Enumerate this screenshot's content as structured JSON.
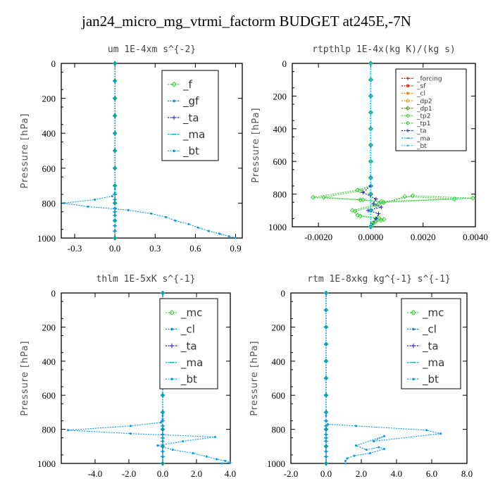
{
  "figure_title": "jan24_micro_mg_vtrmi_factorm  BUDGET at245E,-7N",
  "chart_data": [
    {
      "type": "line",
      "title": "um   1E-4xm  s^{-2}",
      "ylabel": "Pressure [hPa]",
      "ylim": [
        1000,
        0
      ],
      "xlim": [
        -0.4,
        0.95
      ],
      "xticks": [
        -0.3,
        0.0,
        0.3,
        0.6,
        0.9
      ],
      "xtick_labels": [
        "-0.3",
        "0.0",
        "0.3",
        "0.6",
        "0.9"
      ],
      "yticks": [
        0,
        200,
        400,
        600,
        800,
        1000
      ],
      "legend_font": 15,
      "series": [
        {
          "name": "_f",
          "color": "#33cc33",
          "marker": "dia",
          "x": [
            0,
            0,
            0,
            0,
            0,
            0,
            0,
            0,
            0,
            0,
            0
          ],
          "y": [
            0,
            100,
            200,
            300,
            400,
            500,
            600,
            700,
            800,
            900,
            1000
          ]
        },
        {
          "name": "_gf",
          "color": "#0088dd",
          "marker": "dot",
          "x": [
            0,
            0,
            0,
            0,
            0,
            0,
            0,
            0,
            0,
            0,
            0,
            0,
            0,
            0,
            0,
            0,
            0,
            0
          ],
          "y": [
            0,
            100,
            200,
            300,
            400,
            500,
            600,
            700,
            750,
            780,
            800,
            830,
            850,
            870,
            900,
            930,
            960,
            1000
          ]
        },
        {
          "name": "_ta",
          "color": "#2222cc",
          "marker": "plus",
          "x": [
            0,
            0,
            0,
            0,
            0,
            0,
            0,
            0,
            0,
            0,
            0,
            0,
            0,
            0,
            0,
            0,
            0,
            0
          ],
          "y": [
            0,
            100,
            200,
            300,
            400,
            500,
            600,
            700,
            750,
            780,
            800,
            830,
            850,
            870,
            900,
            930,
            960,
            1000
          ]
        },
        {
          "name": "_ma",
          "color": "#00aacc",
          "marker": "dash",
          "x": [
            0,
            0,
            0,
            0,
            0,
            0,
            0,
            0,
            0,
            0,
            0,
            0,
            0,
            0,
            0,
            0,
            0,
            0
          ],
          "y": [
            0,
            100,
            200,
            300,
            400,
            500,
            600,
            700,
            750,
            780,
            800,
            830,
            850,
            870,
            900,
            930,
            960,
            1000
          ]
        },
        {
          "name": "_bt",
          "color": "#0099ee",
          "marker": "dot",
          "x": [
            0,
            0,
            0,
            0,
            0,
            0,
            0,
            0,
            0,
            0,
            -0.02,
            -0.15,
            -0.38,
            -0.2,
            0.1,
            0.27,
            0.38,
            0.45,
            0.55,
            0.62,
            0.7,
            0.78,
            0.85,
            0.9
          ],
          "y": [
            0,
            100,
            200,
            300,
            400,
            500,
            600,
            700,
            720,
            740,
            760,
            780,
            800,
            820,
            840,
            860,
            880,
            900,
            920,
            940,
            960,
            975,
            990,
            1000
          ]
        }
      ]
    },
    {
      "type": "line",
      "title": "rtpthlp  1E-4x(kg K)/(kg s)",
      "ylabel": "Pressure [hPa]",
      "ylim": [
        1000,
        0
      ],
      "xlim": [
        -0.003,
        0.004
      ],
      "xticks": [
        -0.002,
        0.0,
        0.002,
        0.004
      ],
      "xtick_labels": [
        "-0.0020",
        "0.0000",
        "0.0020",
        "0.0040"
      ],
      "yticks": [
        0,
        200,
        400,
        600,
        800,
        1000
      ],
      "legend_font": 9,
      "series": [
        {
          "name": "_forcing",
          "color": "#cc0000",
          "marker": "plus",
          "x": [
            0,
            0,
            0,
            0,
            0,
            0,
            0,
            0,
            0,
            0,
            0
          ],
          "y": [
            0,
            100,
            200,
            300,
            400,
            500,
            600,
            700,
            800,
            900,
            1000
          ]
        },
        {
          "name": "_sf",
          "color": "#ee2200",
          "marker": "star",
          "x": [
            0,
            0,
            0,
            0,
            0,
            0,
            0,
            0,
            0,
            0,
            0
          ],
          "y": [
            0,
            100,
            200,
            300,
            400,
            500,
            600,
            700,
            800,
            900,
            1000
          ]
        },
        {
          "name": "_cl",
          "color": "#ee8800",
          "marker": "star",
          "x": [
            0,
            0,
            0,
            0,
            0,
            0,
            0,
            0,
            0,
            0,
            0
          ],
          "y": [
            0,
            100,
            200,
            300,
            400,
            500,
            600,
            700,
            800,
            900,
            1000
          ]
        },
        {
          "name": "_dp2",
          "color": "#ddaa00",
          "marker": "dia",
          "x": [
            0,
            0,
            0,
            0,
            0,
            0,
            0,
            0,
            0,
            0,
            0
          ],
          "y": [
            0,
            100,
            200,
            300,
            400,
            500,
            600,
            700,
            800,
            900,
            1000
          ]
        },
        {
          "name": "_dp1",
          "color": "#448800",
          "marker": "dia",
          "x": [
            0,
            0,
            0,
            0,
            0,
            0,
            0,
            0,
            0,
            0,
            0
          ],
          "y": [
            0,
            100,
            200,
            300,
            400,
            500,
            600,
            700,
            800,
            900,
            1000
          ]
        },
        {
          "name": "_tp2",
          "color": "#33cc33",
          "marker": "dia",
          "x": [
            0,
            0,
            0,
            0,
            0,
            0,
            0,
            0,
            0,
            -0.0005,
            -0.0022,
            -0.0004,
            0.0005,
            0.0039,
            0.0016,
            0.0003,
            -0.0007,
            -0.0005,
            0.0003,
            0.0005,
            0.0002,
            0.0001,
            0
          ],
          "y": [
            0,
            100,
            200,
            300,
            400,
            500,
            600,
            700,
            750,
            775,
            820,
            835,
            850,
            825,
            810,
            860,
            900,
            930,
            945,
            955,
            965,
            980,
            1000
          ]
        },
        {
          "name": "_tp1",
          "color": "#44cc44",
          "marker": "dia",
          "x": [
            0,
            0,
            0,
            0,
            0,
            0,
            0,
            0,
            0,
            -0.0004,
            -0.0018,
            -0.0003,
            0.0004,
            0.0032,
            0.0013,
            0.0002,
            -0.0006,
            -0.0004,
            0.0002,
            0.0004,
            0.0001,
            0
          ],
          "y": [
            0,
            100,
            200,
            300,
            400,
            500,
            600,
            700,
            750,
            780,
            820,
            835,
            845,
            830,
            815,
            870,
            905,
            935,
            950,
            960,
            975,
            1000
          ]
        },
        {
          "name": "_ta",
          "color": "#2222cc",
          "marker": "plus",
          "x": [
            0,
            0,
            0,
            0,
            0,
            0,
            0,
            0,
            0,
            -0.0003,
            0.0002,
            0.0001,
            0.0004,
            -0.0001,
            0.0003,
            0.0002,
            0
          ],
          "y": [
            0,
            100,
            200,
            300,
            400,
            500,
            600,
            700,
            750,
            790,
            830,
            860,
            880,
            900,
            920,
            950,
            1000
          ]
        },
        {
          "name": "_ma",
          "color": "#00aacc",
          "marker": "dash",
          "x": [
            0,
            0,
            0,
            0,
            0,
            0,
            0,
            0,
            0,
            0,
            0
          ],
          "y": [
            0,
            100,
            200,
            300,
            400,
            500,
            600,
            700,
            800,
            900,
            1000
          ]
        },
        {
          "name": "_bt",
          "color": "#00ccee",
          "marker": "dot",
          "x": [
            0,
            0,
            0,
            0,
            0,
            0,
            0,
            0,
            0,
            0,
            0
          ],
          "y": [
            0,
            100,
            200,
            300,
            400,
            500,
            600,
            700,
            800,
            900,
            1000
          ]
        }
      ]
    },
    {
      "type": "line",
      "title": "thlm   1E-5xK  s^{-1}",
      "ylabel": "Pressure [hPa]",
      "ylim": [
        1000,
        0
      ],
      "xlim": [
        -6.0,
        4.0
      ],
      "xticks": [
        -6.0,
        -4.0,
        -2.0,
        0.0,
        2.0,
        4.0
      ],
      "xtick_labels": [
        "",
        "-4.0",
        "-2.0",
        "0.0",
        "2.0",
        "4.0"
      ],
      "yticks": [
        0,
        200,
        400,
        600,
        800,
        1000
      ],
      "legend_font": 15,
      "series": [
        {
          "name": "_mc",
          "color": "#33cc33",
          "marker": "dia",
          "x": [
            0,
            0,
            0,
            0,
            0,
            0,
            0,
            0,
            0,
            0,
            0
          ],
          "y": [
            0,
            100,
            200,
            300,
            400,
            500,
            600,
            700,
            800,
            900,
            1000
          ]
        },
        {
          "name": "_cl",
          "color": "#0088dd",
          "marker": "dot",
          "x": [
            0,
            0,
            0,
            0,
            0,
            0,
            0,
            0,
            0,
            0,
            0,
            0,
            0,
            0,
            0,
            0,
            0,
            0
          ],
          "y": [
            0,
            100,
            200,
            300,
            400,
            500,
            600,
            700,
            750,
            780,
            800,
            830,
            850,
            870,
            900,
            930,
            960,
            1000
          ]
        },
        {
          "name": "_ta",
          "color": "#2222cc",
          "marker": "plus",
          "x": [
            0,
            0,
            0,
            0,
            0,
            0,
            0,
            0,
            0,
            0,
            0,
            0,
            0,
            0,
            0,
            0,
            0,
            0
          ],
          "y": [
            0,
            100,
            200,
            300,
            400,
            500,
            600,
            700,
            750,
            780,
            800,
            830,
            850,
            870,
            900,
            930,
            960,
            1000
          ]
        },
        {
          "name": "_ma",
          "color": "#00aacc",
          "marker": "dash",
          "x": [
            0,
            0,
            0,
            0,
            0,
            0,
            0,
            0,
            0,
            0,
            0,
            0,
            0,
            0,
            0,
            0,
            0,
            0
          ],
          "y": [
            0,
            100,
            200,
            300,
            400,
            500,
            600,
            700,
            750,
            780,
            800,
            830,
            850,
            870,
            900,
            930,
            960,
            1000
          ]
        },
        {
          "name": "_bt",
          "color": "#0099ee",
          "marker": "dot",
          "x": [
            0,
            0,
            0,
            0,
            0,
            0,
            0,
            0,
            0,
            0,
            -0.1,
            -1.9,
            -5.6,
            -1.9,
            3.1,
            1.2,
            -0.3,
            0.6,
            1.8,
            2.6,
            3.2,
            3.7,
            4.0,
            3.5
          ],
          "y": [
            0,
            100,
            200,
            300,
            400,
            500,
            600,
            700,
            720,
            740,
            760,
            780,
            805,
            825,
            845,
            870,
            895,
            920,
            940,
            960,
            975,
            985,
            995,
            1000
          ]
        }
      ]
    },
    {
      "type": "line",
      "title": "rtm   1E-8xkg  kg^{-1}  s^{-1}",
      "ylabel": "Pressure [hPa]",
      "ylim": [
        1000,
        0
      ],
      "xlim": [
        -2.0,
        8.0
      ],
      "xticks": [
        -2.0,
        0.0,
        2.0,
        4.0,
        6.0,
        8.0
      ],
      "xtick_labels": [
        "-2.0",
        "0.0",
        "2.0",
        "4.0",
        "6.0",
        "8.0"
      ],
      "yticks": [
        0,
        200,
        400,
        600,
        800,
        1000
      ],
      "legend_font": 15,
      "series": [
        {
          "name": "_mc",
          "color": "#33cc33",
          "marker": "dia",
          "x": [
            0,
            0,
            0,
            0,
            0,
            0,
            0,
            0,
            0,
            0,
            0
          ],
          "y": [
            0,
            100,
            200,
            300,
            400,
            500,
            600,
            700,
            800,
            900,
            1000
          ]
        },
        {
          "name": "_cl",
          "color": "#0088dd",
          "marker": "dot",
          "x": [
            0,
            0,
            0,
            0,
            0,
            0,
            0,
            0,
            0,
            0,
            0,
            0,
            0,
            0,
            0,
            0,
            0,
            0
          ],
          "y": [
            0,
            100,
            200,
            300,
            400,
            500,
            600,
            700,
            750,
            780,
            800,
            830,
            850,
            870,
            900,
            930,
            960,
            1000
          ]
        },
        {
          "name": "_ta",
          "color": "#2222cc",
          "marker": "plus",
          "x": [
            0,
            0,
            0,
            0,
            0,
            0,
            0,
            0,
            0,
            0,
            0,
            0,
            0,
            0,
            0,
            0,
            0,
            0
          ],
          "y": [
            0,
            100,
            200,
            300,
            400,
            500,
            600,
            700,
            750,
            780,
            800,
            830,
            850,
            870,
            900,
            930,
            960,
            1000
          ]
        },
        {
          "name": "_ma",
          "color": "#00aacc",
          "marker": "dash",
          "x": [
            0,
            0,
            0,
            0,
            0,
            0,
            0,
            0,
            0,
            0,
            0,
            0,
            0,
            0,
            0,
            0,
            0,
            0
          ],
          "y": [
            0,
            100,
            200,
            300,
            400,
            500,
            600,
            700,
            750,
            780,
            800,
            830,
            850,
            870,
            900,
            930,
            960,
            1000
          ]
        },
        {
          "name": "_bt",
          "color": "#0099ee",
          "marker": "dot",
          "x": [
            0,
            0,
            0,
            0,
            0,
            0,
            0,
            0,
            0,
            0,
            0.1,
            1.7,
            5.7,
            6.5,
            2.7,
            3.3,
            1.7,
            2.3,
            3.0,
            3.3,
            2.5,
            1.6,
            1.2,
            1.1,
            1.1
          ],
          "y": [
            0,
            100,
            200,
            300,
            400,
            500,
            600,
            700,
            720,
            750,
            770,
            780,
            805,
            825,
            870,
            840,
            895,
            920,
            905,
            915,
            940,
            955,
            970,
            985,
            1000
          ]
        }
      ]
    }
  ]
}
